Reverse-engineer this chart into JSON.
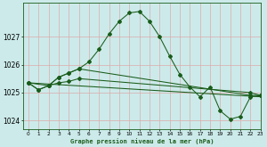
{
  "title": "Graphe pression niveau de la mer (hPa)",
  "background_color": "#cceaea",
  "grid_color": "#ddaaaa",
  "line_color": "#1a5c1a",
  "xlim": [
    -0.5,
    23
  ],
  "ylim": [
    1023.7,
    1028.2
  ],
  "yticks": [
    1024,
    1025,
    1026,
    1027
  ],
  "xticks": [
    0,
    1,
    2,
    3,
    4,
    5,
    6,
    7,
    8,
    9,
    10,
    11,
    12,
    13,
    14,
    15,
    16,
    17,
    18,
    19,
    20,
    21,
    22,
    23
  ],
  "line1_x": [
    0,
    1,
    2,
    3,
    4,
    5,
    6,
    7,
    8,
    9,
    10,
    11,
    12,
    13,
    14,
    15,
    16,
    17,
    18,
    19,
    20,
    21,
    22,
    23
  ],
  "line1_y": [
    1025.35,
    1025.1,
    1025.25,
    1025.55,
    1025.7,
    1025.85,
    1026.1,
    1026.55,
    1027.1,
    1027.55,
    1027.85,
    1027.9,
    1027.55,
    1027.0,
    1026.3,
    1025.65,
    1025.2,
    1024.85,
    1025.2,
    1024.35,
    1024.05,
    1024.15,
    1024.85,
    1024.9
  ],
  "line2_x": [
    0,
    1,
    2,
    3,
    4,
    5,
    22,
    23
  ],
  "line2_y": [
    1025.35,
    1025.1,
    1025.25,
    1025.55,
    1025.7,
    1025.85,
    1024.9,
    1024.9
  ],
  "line3_x": [
    0,
    2,
    3,
    4,
    5,
    22,
    23
  ],
  "line3_y": [
    1025.35,
    1025.25,
    1025.35,
    1025.4,
    1025.5,
    1025.0,
    1024.9
  ],
  "line4_x": [
    0,
    23
  ],
  "line4_y": [
    1025.35,
    1024.85
  ]
}
